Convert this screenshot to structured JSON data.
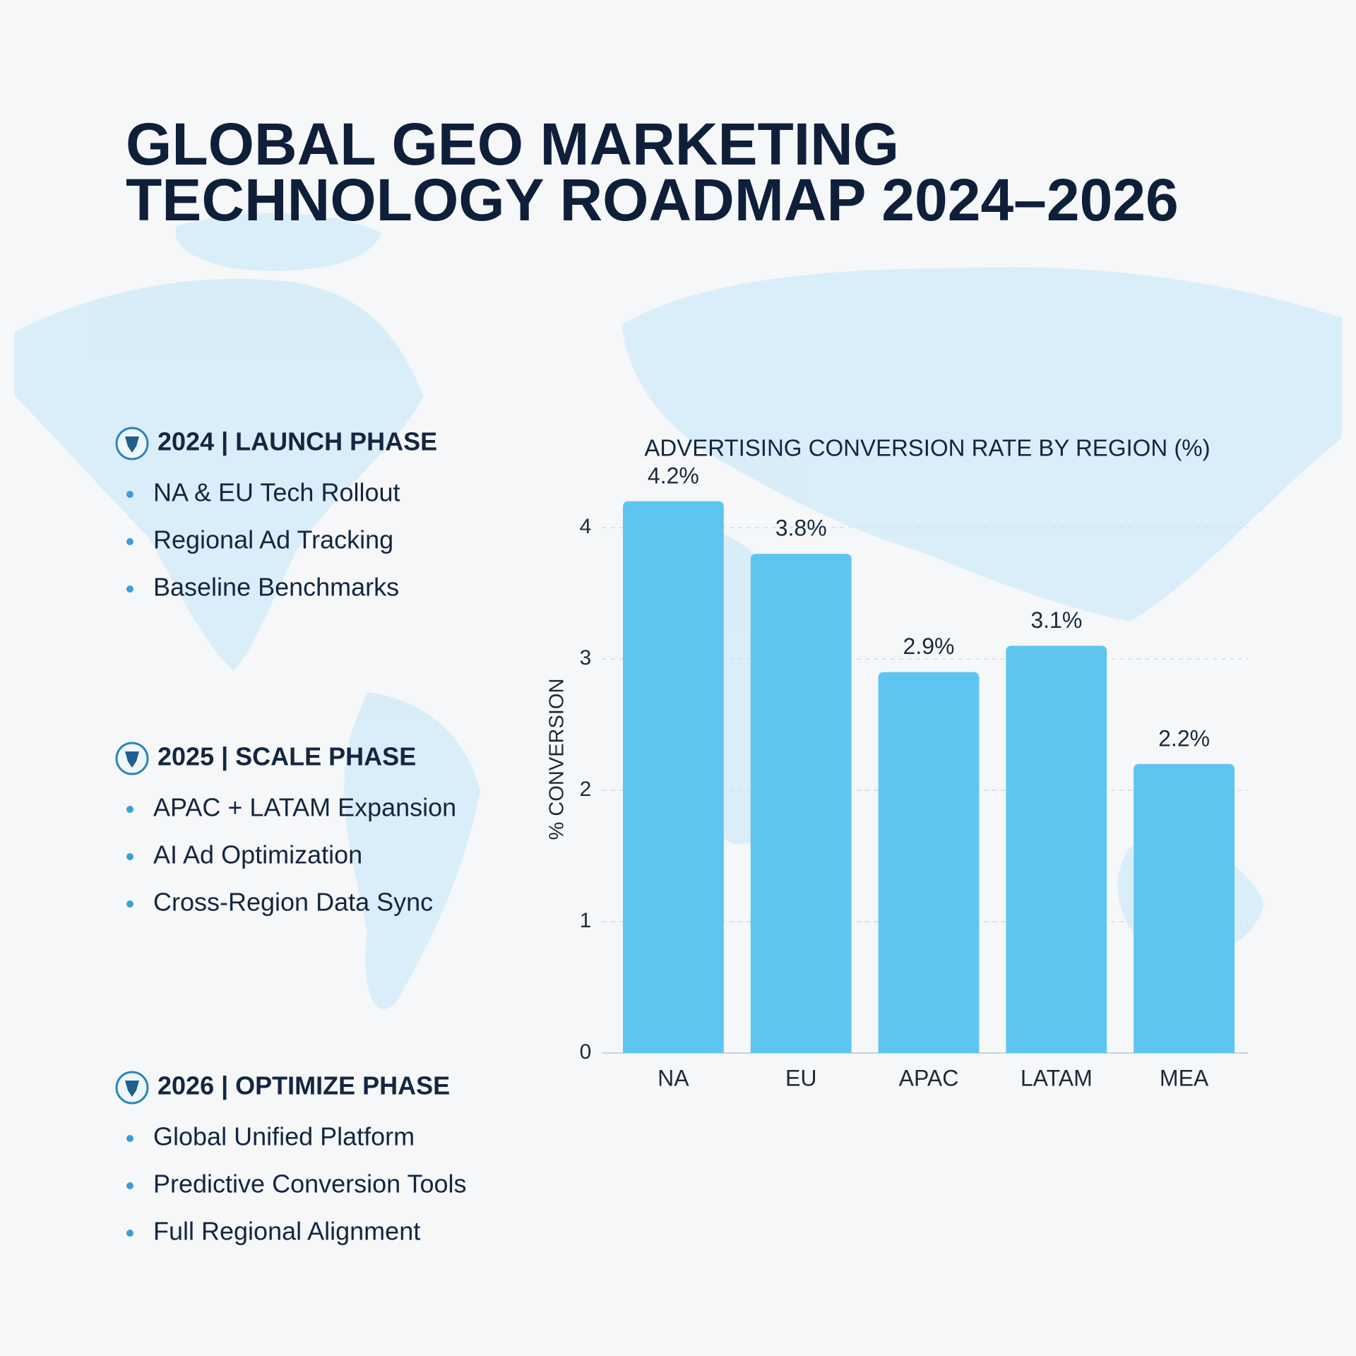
{
  "header": {
    "title_lines": [
      "GLOBAL GEO MARKETING",
      "TECHNOLOGY ROADMAP 2024–2026"
    ]
  },
  "phases": [
    {
      "heading": "2024 | LAUNCH PHASE",
      "items": [
        "NA & EU Tech Rollout",
        "Regional Ad Tracking",
        "Baseline Benchmarks"
      ]
    },
    {
      "heading": "2025 | SCALE PHASE",
      "items": [
        "APAC + LATAM Expansion",
        "AI Ad Optimization",
        "Cross-Region Data Sync"
      ]
    },
    {
      "heading": "2026 | OPTIMIZE PHASE",
      "items": [
        "Global Unified Platform",
        "Predictive Conversion Tools",
        "Full Regional Alignment"
      ]
    }
  ],
  "chart_data": {
    "type": "bar",
    "title": "ADVERTISING CONVERSION RATE BY REGION (%)",
    "y_label": "% CONVERSION",
    "categories": [
      "NA",
      "EU",
      "APAC",
      "LATAM",
      "MEA"
    ],
    "values": [
      4.2,
      3.8,
      2.9,
      3.1,
      2.2
    ],
    "value_labels": [
      "4.2%",
      "3.8%",
      "2.9%",
      "3.1%",
      "2.2%"
    ],
    "color": "#5ec5f0",
    "ylim": [
      0,
      4.5
    ],
    "yticks": [
      0,
      1,
      2,
      3,
      4
    ],
    "grid": true
  }
}
